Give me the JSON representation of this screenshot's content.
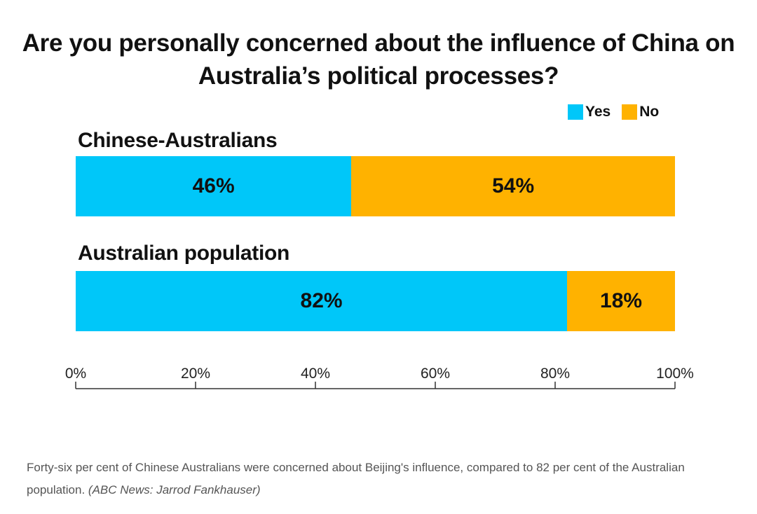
{
  "chart_data": {
    "type": "bar",
    "orientation": "horizontal",
    "stacked": true,
    "title": "Are you personally concerned about the influence of China on Australia’s political processes?",
    "categories": [
      "Chinese-Australians",
      "Australian population"
    ],
    "series": [
      {
        "name": "Yes",
        "values": [
          46,
          82
        ],
        "labels": [
          "46%",
          "82%"
        ],
        "color": "#00c7f9"
      },
      {
        "name": "No",
        "values": [
          54,
          18
        ],
        "labels": [
          "54%",
          "18%"
        ],
        "color": "#ffb200"
      }
    ],
    "xlim": [
      0,
      100
    ],
    "xticks": [
      "0%",
      "20%",
      "40%",
      "60%",
      "80%",
      "100%"
    ],
    "legend_position": "top-right",
    "grid": false
  },
  "caption": {
    "text": "Forty-six per cent of Chinese Australians were concerned about Beijing's influence, compared to 82 per cent of the Australian population.",
    "credit": "(ABC News: Jarrod Fankhauser)"
  }
}
